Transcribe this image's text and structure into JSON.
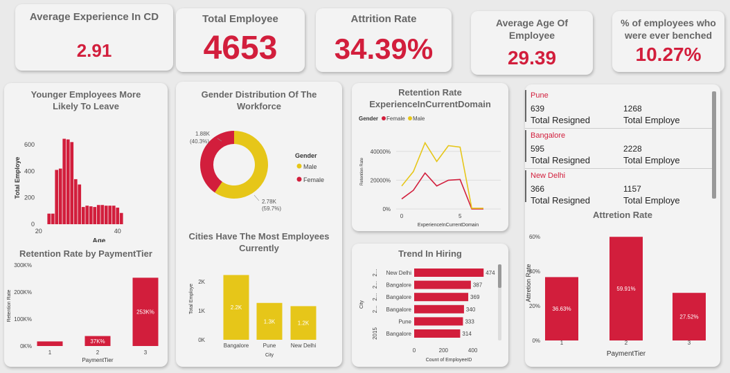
{
  "kpis": {
    "avg_experience": {
      "title": "Average Experience In CD",
      "value": "2.91"
    },
    "total_employee": {
      "title": "Total Employee",
      "value": "4653"
    },
    "attrition_rate": {
      "title": "Attrition Rate",
      "value": "34.39%"
    },
    "avg_age": {
      "title": "Average Age Of Employee",
      "value": "29.39"
    },
    "benched": {
      "title": "% of employees who were ever benched",
      "value": "10.27%"
    }
  },
  "city_table": {
    "rows": [
      {
        "city": "Pune",
        "resigned": "639",
        "total": "1268"
      },
      {
        "city": "Bangalore",
        "resigned": "595",
        "total": "2228"
      },
      {
        "city": "New Delhi",
        "resigned": "366",
        "total": "1157"
      }
    ],
    "resigned_label": "Total Resigned",
    "total_label": "Total Employe"
  },
  "chart_data": [
    {
      "id": "age_hist",
      "type": "bar",
      "title": "Younger Employees More Likely To Leave",
      "xlabel": "Age",
      "ylabel": "Total Employe",
      "x": [
        22,
        23,
        24,
        25,
        26,
        27,
        28,
        29,
        30,
        31,
        32,
        33,
        34,
        35,
        36,
        37,
        38,
        39,
        40,
        41
      ],
      "values": [
        80,
        80,
        410,
        420,
        645,
        640,
        620,
        340,
        300,
        130,
        140,
        135,
        130,
        145,
        145,
        140,
        140,
        140,
        125,
        85
      ],
      "xticks": [
        "20",
        "40"
      ],
      "yticks": [
        "0",
        "200",
        "400",
        "600"
      ],
      "ylim": [
        0,
        700
      ],
      "color": "#d21e3c"
    },
    {
      "id": "gender",
      "type": "pie",
      "title": "Gender Distribution Of The Workforce",
      "legend_title": "Gender",
      "slices": [
        {
          "name": "Male",
          "value": 2780,
          "label": "2.78K",
          "pct": "(59.7%)",
          "color": "#e6c619"
        },
        {
          "name": "Female",
          "value": 1880,
          "label": "1.88K",
          "pct": "(40.3%)",
          "color": "#d21e3c"
        }
      ]
    },
    {
      "id": "retention_exp",
      "type": "line",
      "title": "Retention Rate ExperienceInCurrentDomain",
      "legend_title": "Gender",
      "xlabel": "ExperienceInCurrentDomain",
      "ylabel": "Retention Rate",
      "x": [
        0,
        1,
        2,
        3,
        4,
        5,
        6,
        7
      ],
      "series": [
        {
          "name": "Female",
          "color": "#d21e3c",
          "values": [
            7000,
            13000,
            25000,
            16000,
            20000,
            20500,
            0,
            0
          ]
        },
        {
          "name": "Male",
          "color": "#e6c619",
          "values": [
            16000,
            26000,
            46000,
            33000,
            44000,
            43000,
            500,
            500
          ]
        }
      ],
      "xticks": [
        "0",
        "5"
      ],
      "yticks": [
        "0%",
        "20000%",
        "40000%"
      ],
      "ylim": [
        0,
        50000
      ]
    },
    {
      "id": "retention_tier",
      "type": "bar",
      "title": "Retention Rate by PaymentTier",
      "xlabel": "PaymentTier",
      "ylabel": "Retention Rate",
      "categories": [
        "1",
        "2",
        "3"
      ],
      "values": [
        17000,
        37000,
        253000
      ],
      "labels": [
        "",
        "37K%",
        "253K%"
      ],
      "yticks": [
        "0K%",
        "100K%",
        "200K%",
        "300K%"
      ],
      "ylim": [
        0,
        300000
      ],
      "color": "#d21e3c"
    },
    {
      "id": "cities",
      "type": "bar",
      "title": "Cities Have The Most Employees Currently",
      "xlabel": "City",
      "ylabel": "Total Employe",
      "categories": [
        "Bangalore",
        "Pune",
        "New Delhi"
      ],
      "values": [
        2228,
        1268,
        1157
      ],
      "labels": [
        "2.2K",
        "1.3K",
        "1.2K"
      ],
      "yticks": [
        "0K",
        "1K",
        "2K"
      ],
      "ylim": [
        0,
        2500
      ],
      "color": "#e6c619"
    },
    {
      "id": "hiring",
      "type": "bar",
      "orientation": "horizontal",
      "title": "Trend In Hiring",
      "xlabel": "Count of EmployeeID",
      "ylabel": "City",
      "categories": [
        "New Delhi",
        "Bangalore",
        "Bangalore",
        "Bangalore",
        "Pune",
        "Bangalore"
      ],
      "group_labels": [
        "2...",
        "2...",
        "2...",
        "2...",
        "",
        "2015"
      ],
      "values": [
        474,
        387,
        369,
        340,
        333,
        314
      ],
      "xticks": [
        "0",
        "200",
        "400"
      ],
      "xlim": [
        0,
        520
      ],
      "color": "#d21e3c"
    },
    {
      "id": "attrition_tier",
      "type": "bar",
      "title": "Attretion Rate",
      "xlabel": "PaymentTier",
      "ylabel": "Attretion Rate",
      "categories": [
        "1",
        "2",
        "3"
      ],
      "values": [
        36.63,
        59.91,
        27.52
      ],
      "labels": [
        "36.63%",
        "59.91%",
        "27.52%"
      ],
      "yticks": [
        "0%",
        "20%",
        "40%",
        "60%"
      ],
      "ylim": [
        0,
        60
      ],
      "color": "#d21e3c"
    }
  ]
}
